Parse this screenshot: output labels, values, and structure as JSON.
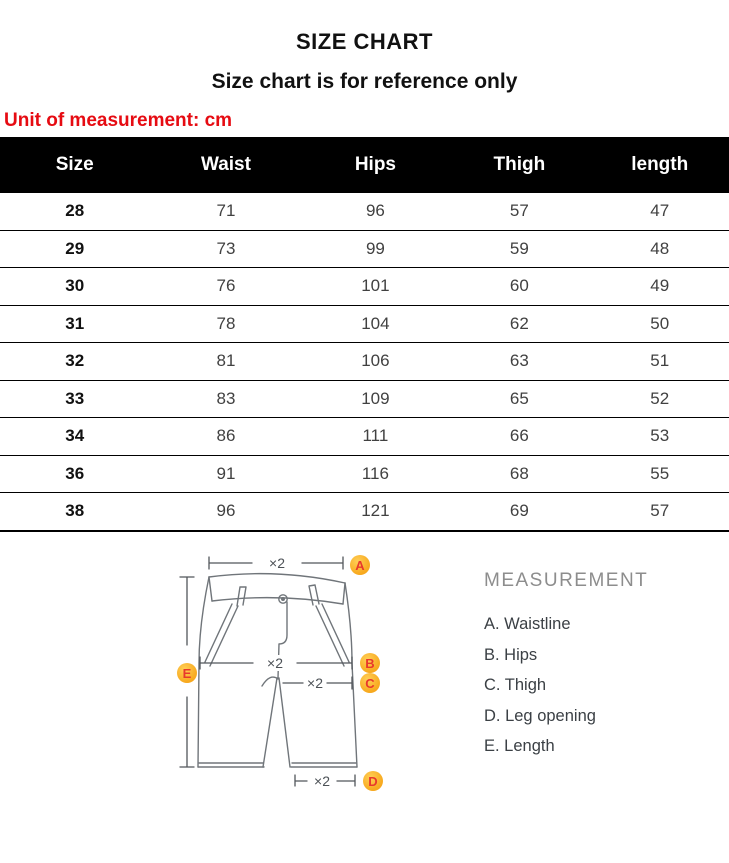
{
  "header": {
    "title": "SIZE CHART",
    "subtitle": "Size chart is for reference only",
    "unit_note": "Unit of measurement: cm"
  },
  "table": {
    "columns": [
      "Size",
      "Waist",
      "Hips",
      "Thigh",
      "length"
    ],
    "rows": [
      [
        "28",
        "71",
        "96",
        "57",
        "47"
      ],
      [
        "29",
        "73",
        "99",
        "59",
        "48"
      ],
      [
        "30",
        "76",
        "101",
        "60",
        "49"
      ],
      [
        "31",
        "78",
        "104",
        "62",
        "50"
      ],
      [
        "32",
        "81",
        "106",
        "63",
        "51"
      ],
      [
        "33",
        "83",
        "109",
        "65",
        "52"
      ],
      [
        "34",
        "86",
        "111",
        "66",
        "53"
      ],
      [
        "36",
        "91",
        "116",
        "68",
        "55"
      ],
      [
        "38",
        "96",
        "121",
        "69",
        "57"
      ]
    ]
  },
  "diagram": {
    "multiplier_label": "×2",
    "markers": [
      {
        "letter": "A"
      },
      {
        "letter": "B"
      },
      {
        "letter": "C"
      },
      {
        "letter": "D"
      },
      {
        "letter": "E"
      }
    ]
  },
  "legend": {
    "title": "MEASUREMENT",
    "items": [
      "A. Waistline",
      "B. Hips",
      "C. Thigh",
      "D. Leg opening",
      "E. Length"
    ]
  },
  "colors": {
    "unit_note_red": "#e60b12",
    "table_header_bg": "#000000",
    "table_header_text": "#ffffff",
    "marker_fill": "#f8ab21",
    "marker_letter_red": "#e8382c",
    "drawing_stroke_gray": "#70757a"
  }
}
